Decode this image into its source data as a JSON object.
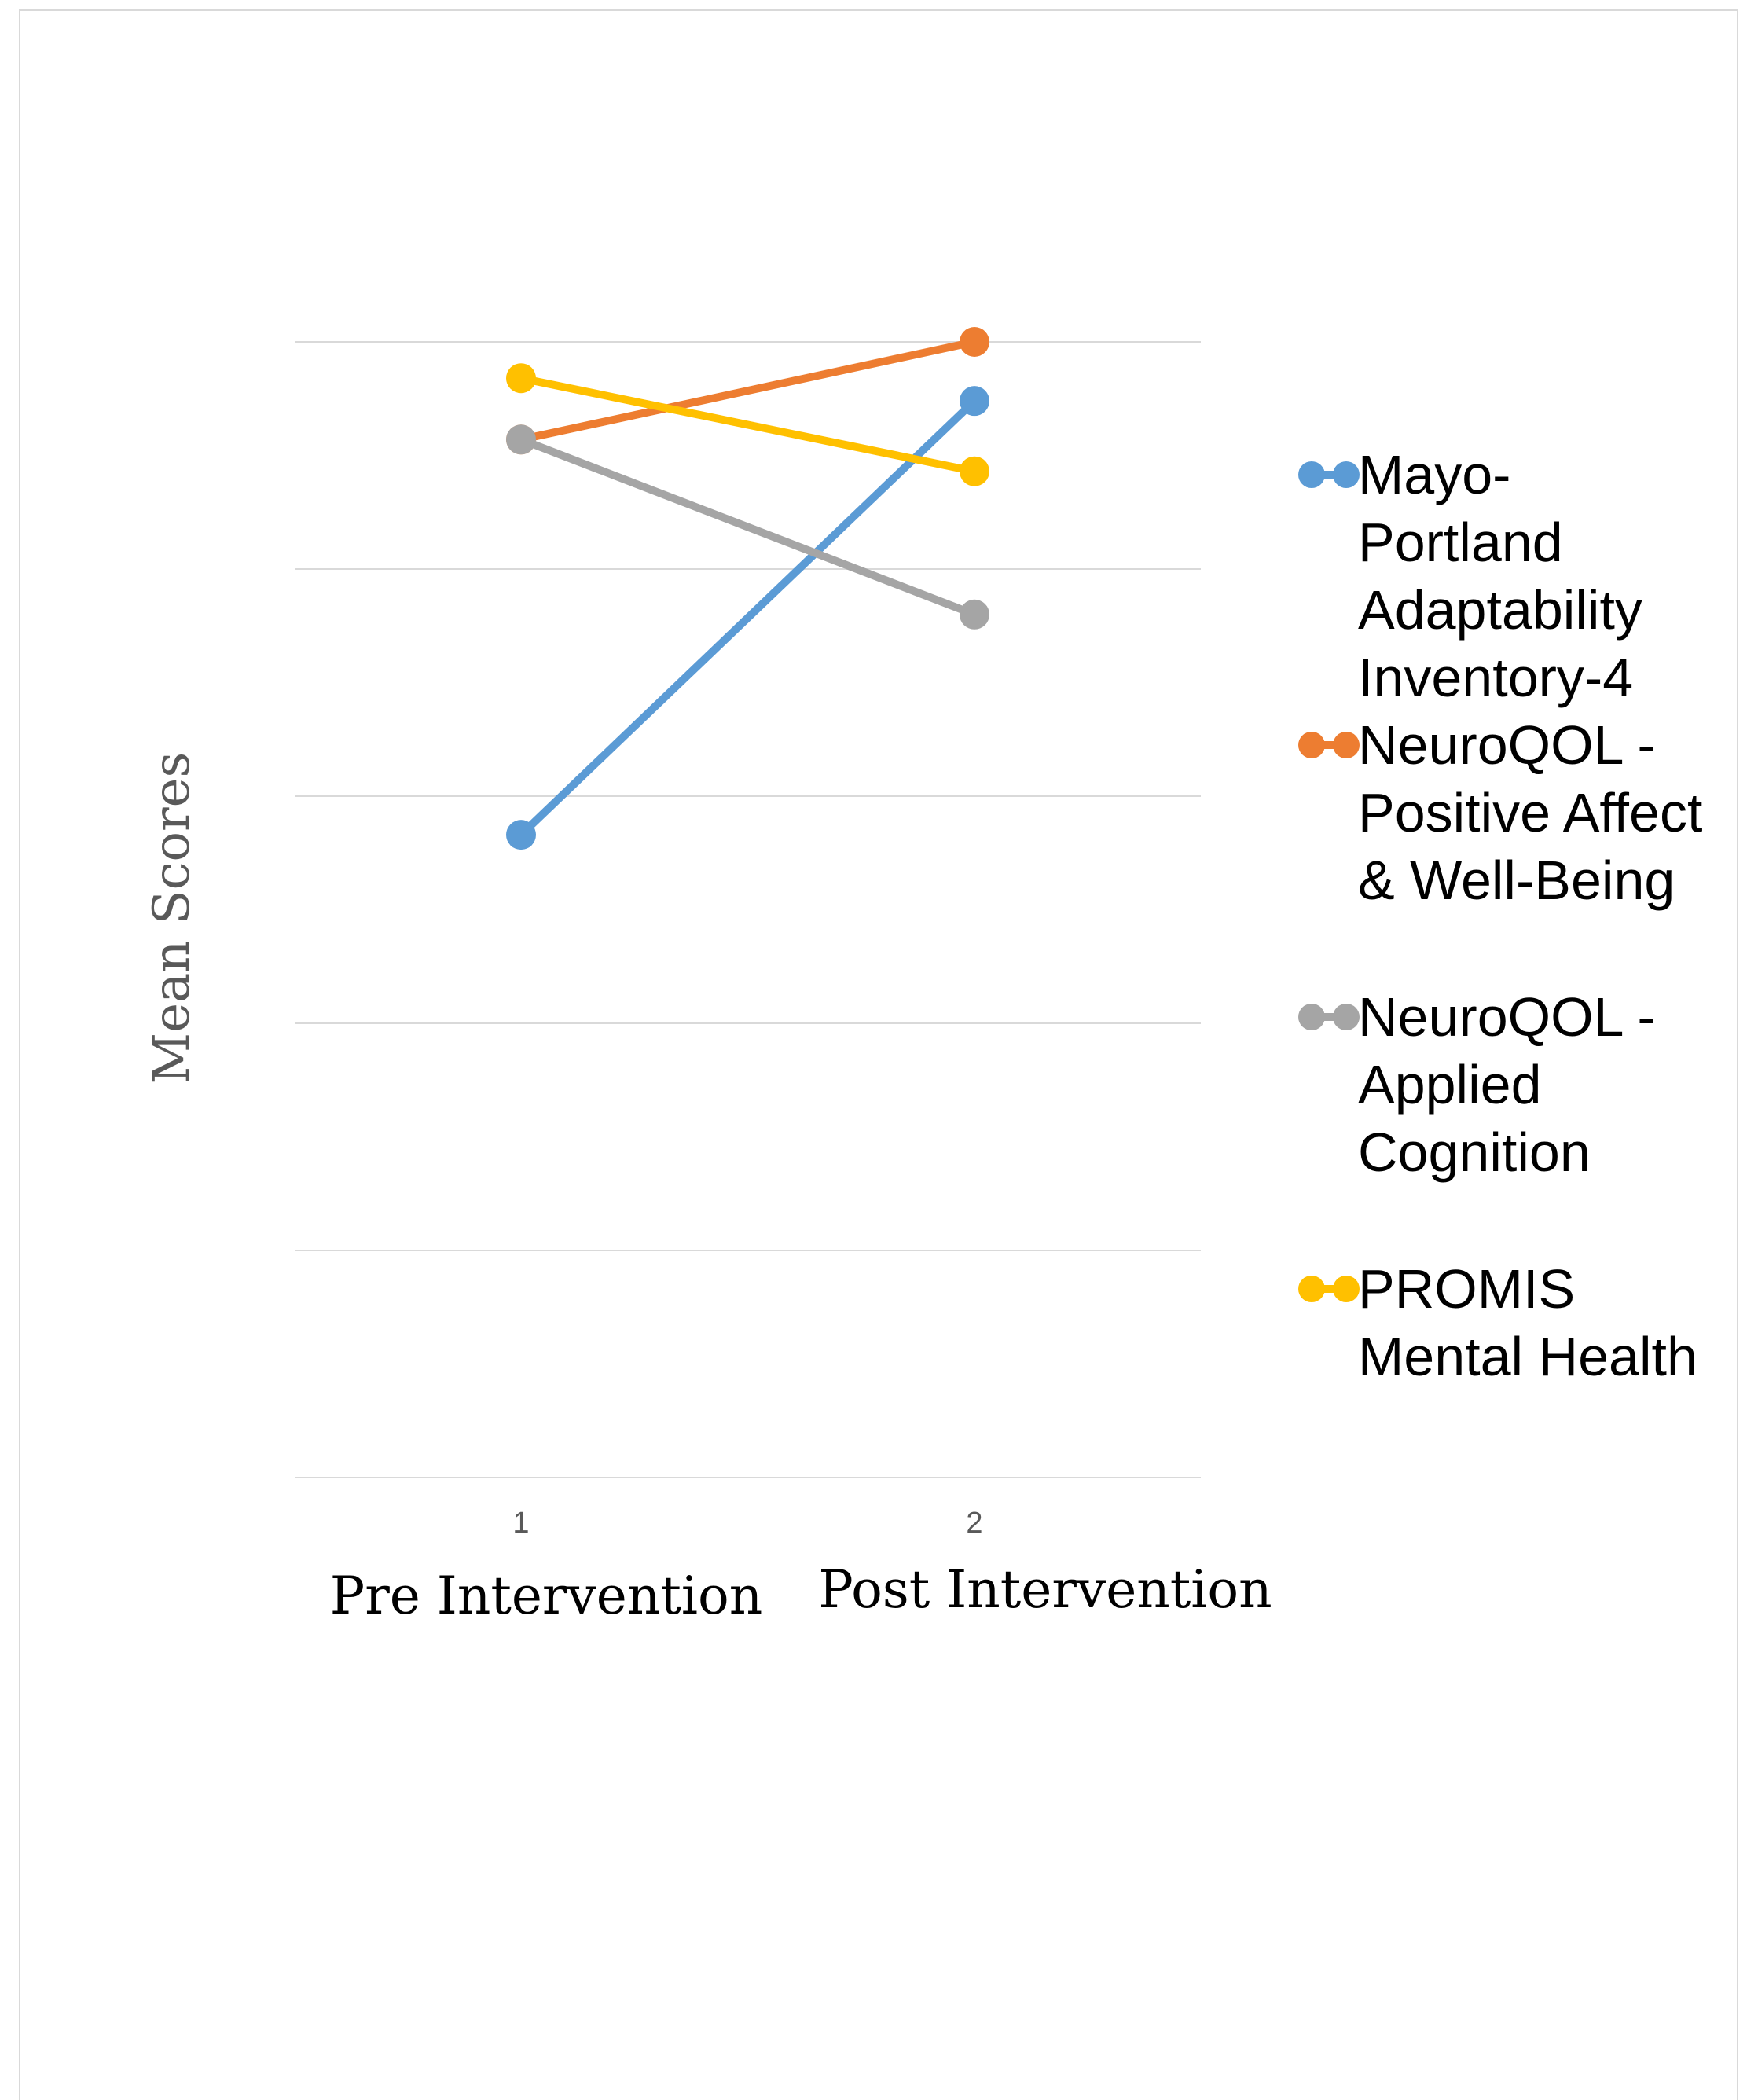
{
  "chart_data": {
    "type": "line",
    "title": "",
    "ylabel": "Mean Scores",
    "x": [
      1,
      2
    ],
    "category_labels": [
      "Pre Intervention",
      "Post Intervention"
    ],
    "ylim": [
      0,
      5
    ],
    "grid": true,
    "legend_position": "right",
    "series": [
      {
        "name": [
          "Mayo-",
          "Portland",
          "Adaptability",
          "Inventory-4"
        ],
        "color": "#5B9BD5",
        "values": [
          2.83,
          4.74
        ]
      },
      {
        "name": [
          "NeuroQOL -",
          "Positive Affect",
          "& Well-Being"
        ],
        "color": "#ED7D31",
        "values": [
          4.57,
          5.0
        ]
      },
      {
        "name": [
          "NeuroQOL -",
          "Applied",
          "Cognition"
        ],
        "color": "#A5A5A5",
        "values": [
          4.57,
          3.8
        ]
      },
      {
        "name": [
          "PROMIS",
          "Mental Health"
        ],
        "color": "#FFC000",
        "values": [
          4.84,
          4.43
        ]
      }
    ]
  }
}
